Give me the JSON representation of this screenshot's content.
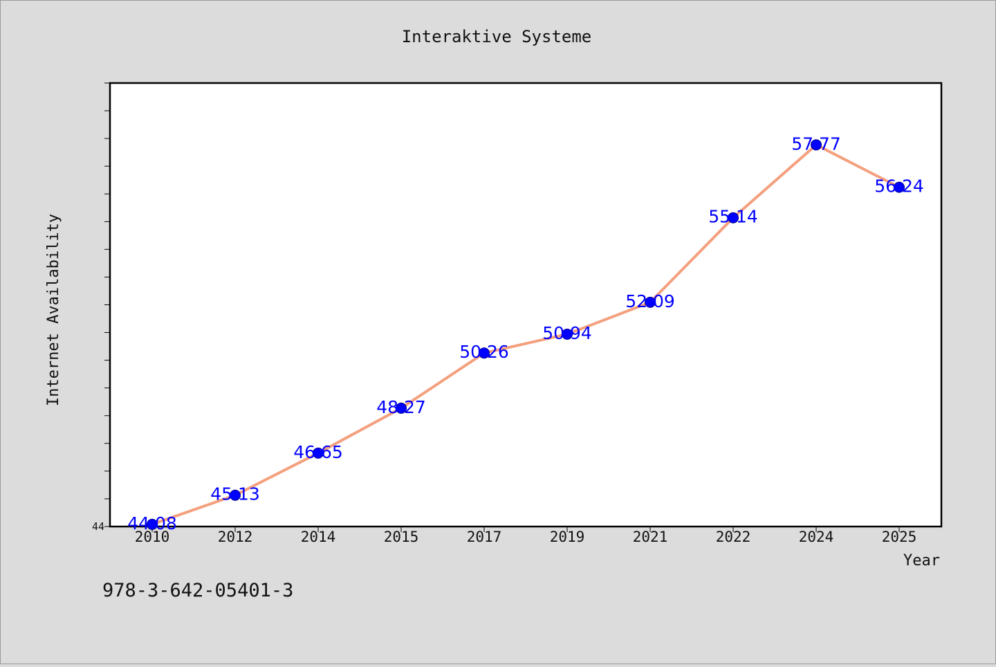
{
  "chart_data": {
    "type": "line",
    "title": "Interaktive Systeme",
    "xlabel": "Year",
    "ylabel": "Internet Availability",
    "categories": [
      "2010",
      "2012",
      "2014",
      "2015",
      "2017",
      "2019",
      "2021",
      "2022",
      "2024",
      "2025"
    ],
    "series": [
      {
        "values": [
          44.08,
          45.13,
          46.65,
          48.27,
          50.26,
          50.94,
          52.09,
          55.14,
          57.77,
          56.24
        ],
        "data_labels": [
          "44.08",
          "45.13",
          "46.65",
          "48.27",
          "50.26",
          "50.94",
          "52.09",
          "55.14",
          "57.77",
          "56.24"
        ]
      }
    ],
    "ylim": [
      44,
      60
    ],
    "y_tick_label": "44",
    "grid": false,
    "colors": {
      "line": "#f4a07e",
      "marker": "#0000ff",
      "label": "#0000ff",
      "background": "#dcdcdc",
      "plot_background": "#ffffff"
    }
  },
  "footer": {
    "text": "978-3-642-05401-3"
  }
}
